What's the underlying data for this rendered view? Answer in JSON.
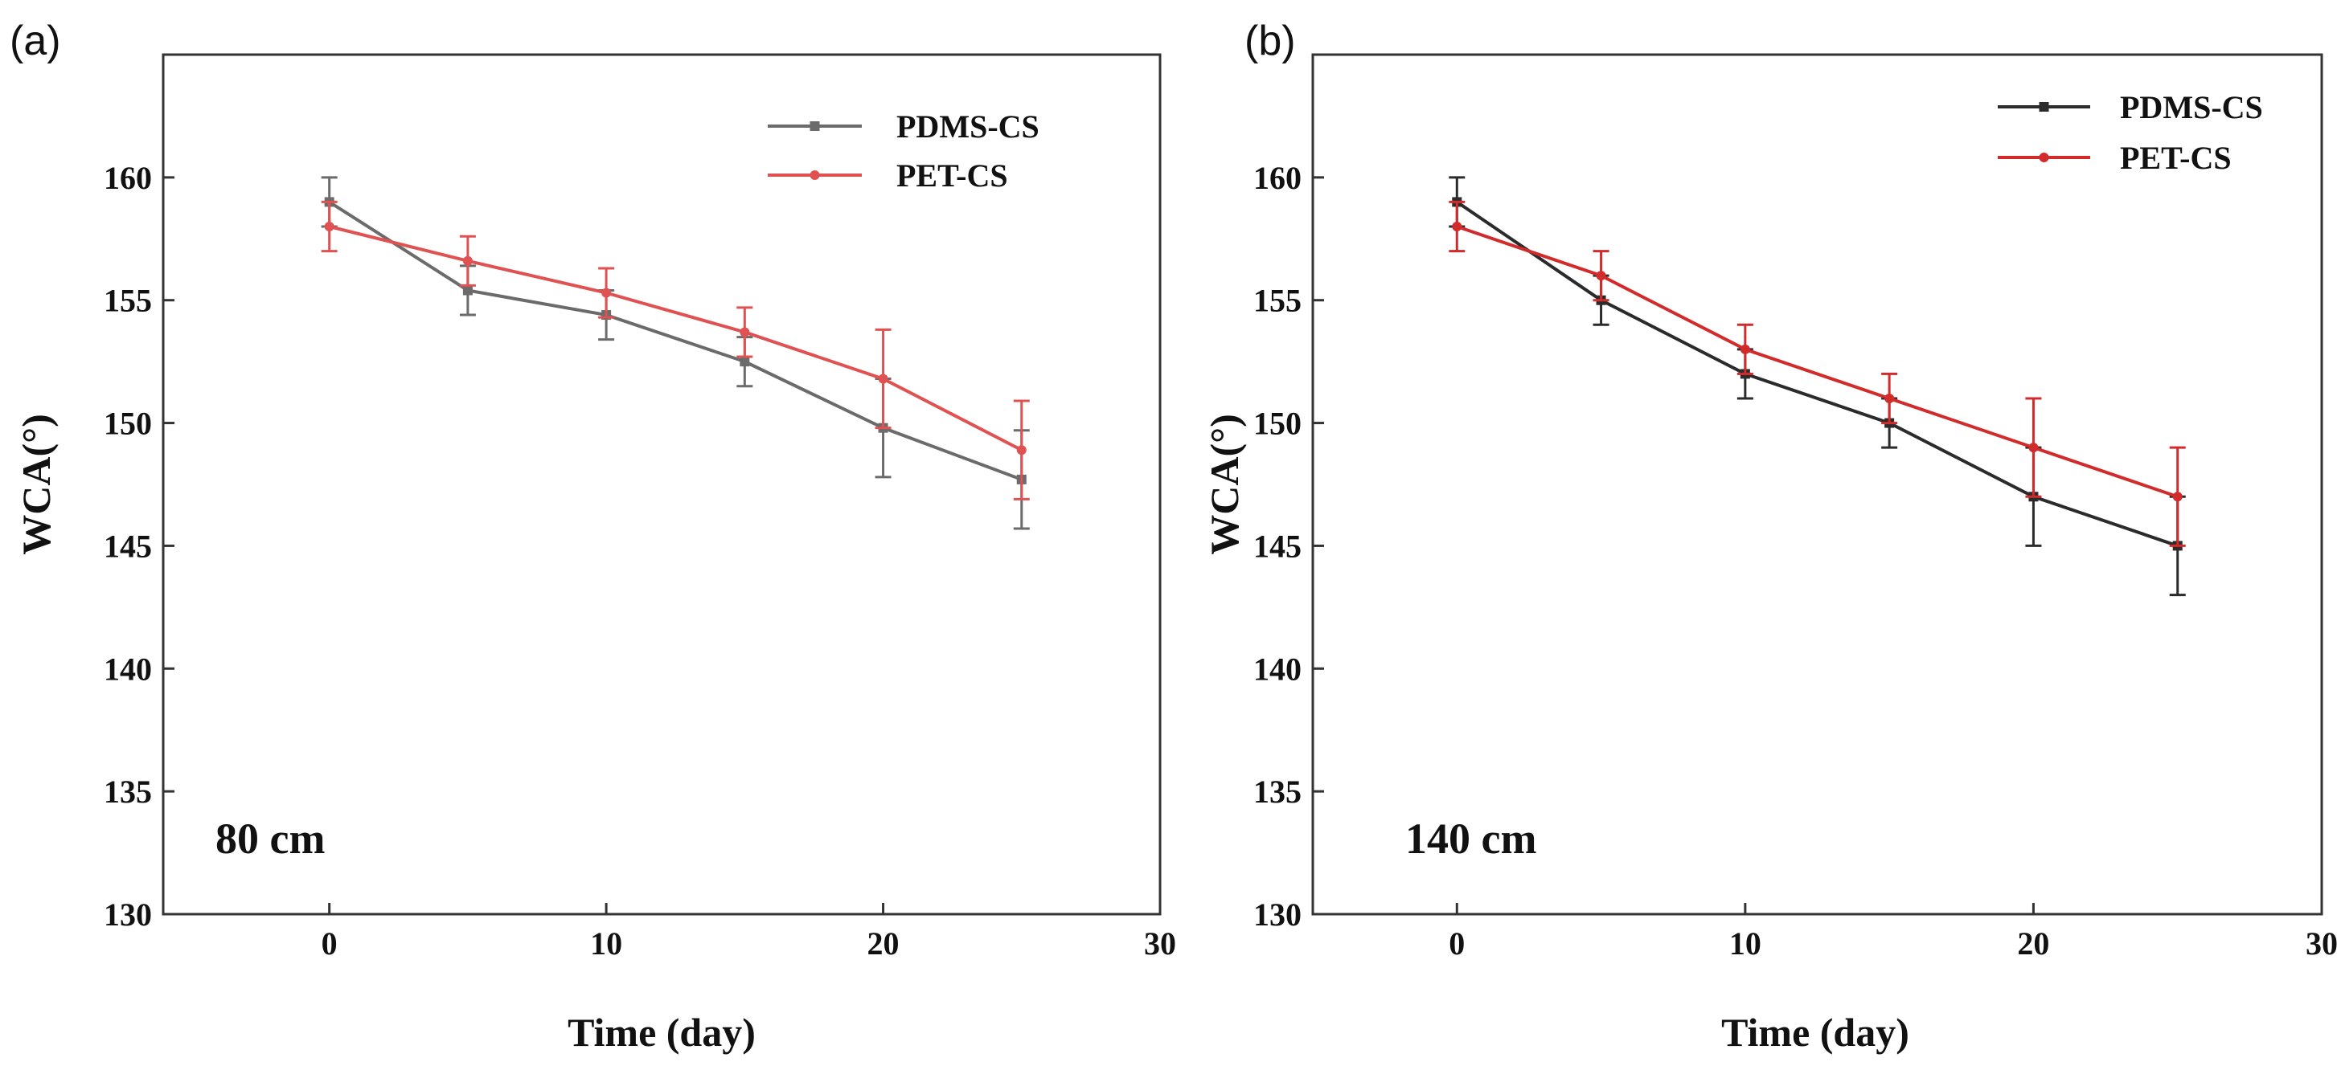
{
  "chart_data": [
    {
      "panel_label": "(a)",
      "type": "line",
      "annotation": "80 cm",
      "xlabel": "Time (day)",
      "ylabel": "WCA(°)",
      "xlim": [
        -6,
        30
      ],
      "ylim": [
        130,
        165
      ],
      "xticks": [
        "0",
        "10",
        "20",
        "30"
      ],
      "yticks": [
        "130",
        "135",
        "140",
        "145",
        "150",
        "155",
        "160"
      ],
      "legend_position": "top-right",
      "x": [
        0,
        5,
        10,
        15,
        20,
        25
      ],
      "series": [
        {
          "name": "PDMS-CS",
          "color": "#6b6b6b",
          "values": [
            159,
            155.4,
            154.4,
            152.5,
            149.8,
            147.7
          ],
          "errors": [
            1,
            1,
            1,
            1,
            2,
            2
          ]
        },
        {
          "name": "PET-CS",
          "color": "#e05252",
          "values": [
            158,
            156.6,
            155.3,
            153.7,
            151.8,
            148.9
          ],
          "errors": [
            1,
            1,
            1,
            1,
            2,
            2
          ]
        }
      ]
    },
    {
      "panel_label": "(b)",
      "type": "line",
      "annotation": "140 cm",
      "xlabel": "Time (day)",
      "ylabel": "WCA(°)",
      "xlim": [
        -5,
        30
      ],
      "ylim": [
        130,
        165
      ],
      "xticks": [
        "0",
        "10",
        "20",
        "30"
      ],
      "yticks": [
        "130",
        "135",
        "140",
        "145",
        "150",
        "155",
        "160"
      ],
      "legend_position": "top-right",
      "x": [
        0,
        5,
        10,
        15,
        20,
        25
      ],
      "series": [
        {
          "name": "PDMS-CS",
          "color": "#2b2b2b",
          "values": [
            159,
            155,
            152,
            150,
            147,
            145
          ],
          "errors": [
            1,
            1,
            1,
            1,
            2,
            2
          ]
        },
        {
          "name": "PET-CS",
          "color": "#d12b2b",
          "values": [
            158,
            156,
            153,
            151,
            149,
            147
          ],
          "errors": [
            1,
            1,
            1,
            1,
            2,
            2
          ]
        }
      ]
    }
  ]
}
